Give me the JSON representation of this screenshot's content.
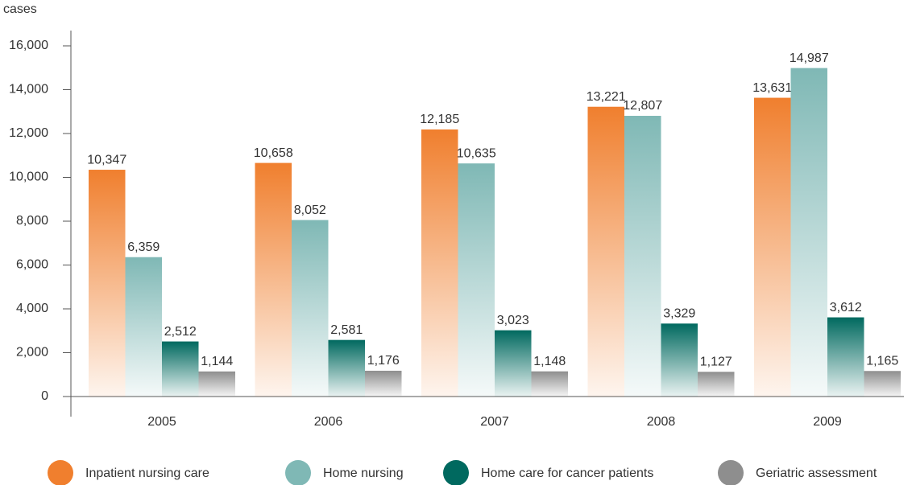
{
  "chart_data": {
    "type": "bar",
    "y_label": "cases",
    "categories": [
      "2005",
      "2006",
      "2007",
      "2008",
      "2009"
    ],
    "series": [
      {
        "name": "Inpatient nursing care",
        "color": "#f07f2e",
        "values": [
          10347,
          10658,
          12185,
          13221,
          13631
        ],
        "value_labels": [
          "10,347",
          "10,658",
          "12,185",
          "13,221",
          "13,631"
        ]
      },
      {
        "name": "Home nursing",
        "color": "#7fb8b5",
        "values": [
          6359,
          8052,
          10635,
          12807,
          14987
        ],
        "value_labels": [
          "6,359",
          "8,052",
          "10,635",
          "12,807",
          "14,987"
        ]
      },
      {
        "name": "Home care for cancer patients",
        "color": "#00695f",
        "values": [
          2512,
          2581,
          3023,
          3329,
          3612
        ],
        "value_labels": [
          "2,512",
          "2,581",
          "3,023",
          "3,329",
          "3,612"
        ]
      },
      {
        "name": "Geriatric assessment",
        "color": "#8e8e8e",
        "values": [
          1144,
          1176,
          1148,
          1127,
          1165
        ],
        "value_labels": [
          "1,144",
          "1,176",
          "1,148",
          "1,127",
          "1,165"
        ]
      }
    ],
    "ylim": [
      0,
      16000
    ],
    "yticks": [
      0,
      {
        "value": 2000,
        "label": "2,000"
      },
      {
        "value": 4000,
        "label": "4,000"
      },
      {
        "value": 6000,
        "label": "6,000"
      },
      {
        "value": 8000,
        "label": "8,000"
      },
      {
        "value": 10000,
        "label": "10,000"
      },
      {
        "value": 12000,
        "label": "12,000"
      },
      {
        "value": 14000,
        "label": "14,000"
      },
      {
        "value": 16000,
        "label": "16,000"
      }
    ],
    "legend": "bottom"
  }
}
